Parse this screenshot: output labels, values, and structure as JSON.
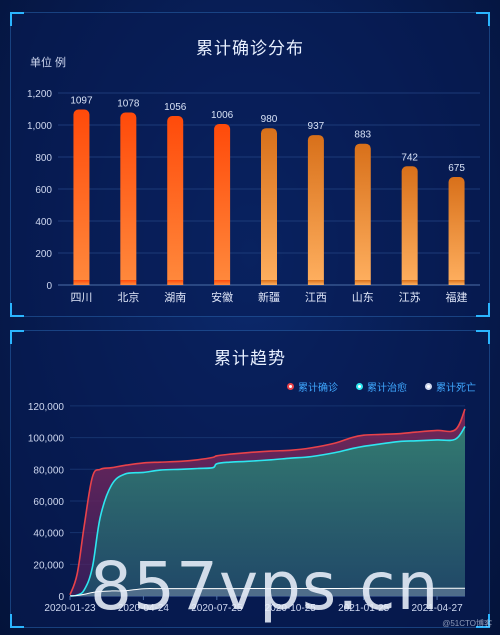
{
  "chart_data": [
    {
      "type": "bar",
      "title": "累计确诊分布",
      "unit_label": "单位 例",
      "categories": [
        "四川",
        "北京",
        "湖南",
        "安徽",
        "新疆",
        "江西",
        "山东",
        "江苏",
        "福建"
      ],
      "values": [
        1097,
        1078,
        1056,
        1006,
        980,
        937,
        883,
        742,
        675
      ],
      "ylim": [
        0,
        1200
      ],
      "yticks": [
        "0",
        "200",
        "400",
        "600",
        "800",
        "1,000",
        "1,200"
      ],
      "ytick_values": [
        0,
        200,
        400,
        600,
        800,
        1000,
        1200
      ],
      "grid": true,
      "colors": {
        "bar_top_strong": "#ff4a0a",
        "bar_bottom_strong": "#ff8a3d",
        "bar_top_soft": "#d8781e",
        "bar_bottom_soft": "#ffb060"
      }
    },
    {
      "type": "area",
      "title": "累计趋势",
      "x": [
        "2020-01-23",
        "2020-02-01",
        "2020-02-10",
        "2020-02-20",
        "2020-03-01",
        "2020-03-15",
        "2020-04-01",
        "2020-04-24",
        "2020-05-15",
        "2020-06-10",
        "2020-07-01",
        "2020-07-20",
        "2020-07-25",
        "2020-08-10",
        "2020-09-01",
        "2020-10-01",
        "2020-10-25",
        "2020-11-20",
        "2020-12-20",
        "2021-01-10",
        "2021-01-25",
        "2021-02-15",
        "2021-03-10",
        "2021-04-01",
        "2021-04-27",
        "2021-05-20",
        "2021-06-01"
      ],
      "xticks": [
        "2020-01-23",
        "2020-04-24",
        "2020-07-25",
        "2020-10-25",
        "2021-01-25",
        "2021-04-27"
      ],
      "yticks": [
        "0",
        "20,000",
        "40,000",
        "60,000",
        "80,000",
        "100,000",
        "120,000"
      ],
      "ytick_values": [
        0,
        20000,
        40000,
        60000,
        80000,
        100000,
        120000
      ],
      "ylim": [
        0,
        125000
      ],
      "legend_position": "top-right",
      "series": [
        {
          "name": "累计确诊",
          "color": "#e8424a",
          "values": [
            800,
            14000,
            45000,
            75000,
            80000,
            81000,
            82500,
            84000,
            84500,
            85000,
            86000,
            87500,
            88500,
            89500,
            90500,
            91500,
            92000,
            93500,
            96500,
            100000,
            101500,
            102000,
            102500,
            103500,
            104500,
            105000,
            118000
          ]
        },
        {
          "name": "累计治愈",
          "color": "#2ee6f0",
          "values": [
            0,
            600,
            4000,
            18000,
            50000,
            70000,
            77000,
            78000,
            79500,
            80000,
            80500,
            81000,
            83500,
            84500,
            85000,
            86000,
            87000,
            88000,
            90500,
            93000,
            94500,
            96000,
            97500,
            98000,
            98500,
            99000,
            107000
          ]
        },
        {
          "name": "累计死亡",
          "color": "#ffffff",
          "values": [
            25,
            300,
            1100,
            2200,
            2900,
            3200,
            3300,
            4600,
            4640,
            4650,
            4650,
            4660,
            4660,
            4670,
            4700,
            4730,
            4740,
            4740,
            4750,
            4780,
            4800,
            4820,
            4840,
            4850,
            4860,
            4870,
            4880
          ]
        }
      ],
      "grid": true
    }
  ],
  "watermark": "857vps.cn",
  "credit": "@51CTO博客"
}
